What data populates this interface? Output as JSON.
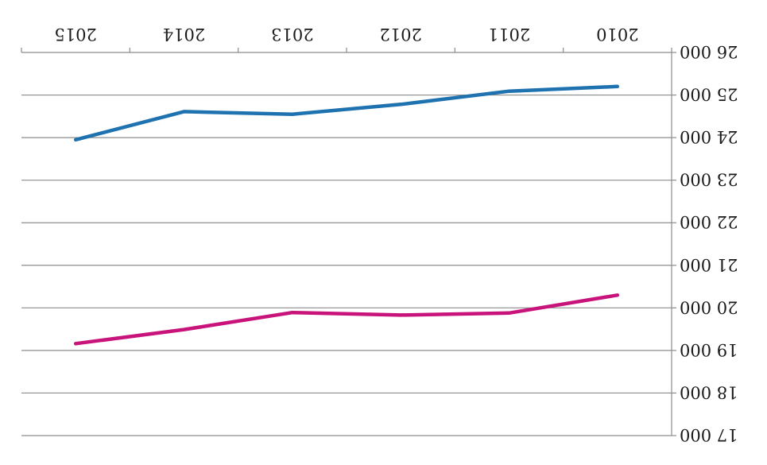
{
  "chart_data": {
    "type": "line",
    "orientation_note": "image is rotated 180 degrees",
    "categories": [
      "2010",
      "2011",
      "2012",
      "2013",
      "2014",
      "2015"
    ],
    "series": [
      {
        "color": "#c8137b",
        "values": [
          20300,
          19880,
          19830,
          19890,
          19490,
          19160
        ]
      },
      {
        "color": "#1f72b0",
        "values": [
          25200,
          25090,
          24780,
          24550,
          24610,
          23950
        ]
      }
    ],
    "y_ticks": [
      "17 000",
      "18 000",
      "19 000",
      "20 000",
      "21 000",
      "22 000",
      "23 000",
      "24 000",
      "25 000",
      "26 000"
    ],
    "ylim": [
      17000,
      26000
    ],
    "ylabel": "",
    "xlabel": "",
    "title": "",
    "grid": true
  }
}
